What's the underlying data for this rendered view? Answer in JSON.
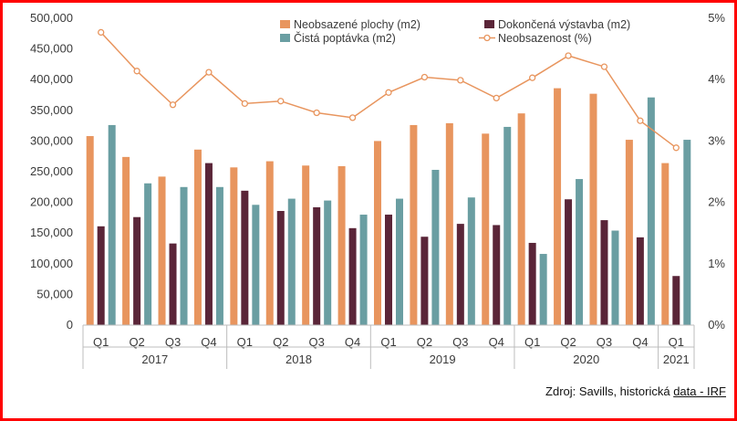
{
  "chart_data": {
    "type": "bar",
    "categories": [
      "Q1",
      "Q2",
      "Q3",
      "Q4",
      "Q1",
      "Q2",
      "Q3",
      "Q4",
      "Q1",
      "Q2",
      "Q3",
      "Q4",
      "Q1",
      "Q2",
      "Q3",
      "Q4",
      "Q1"
    ],
    "groups": [
      {
        "label": "2017",
        "count": 4
      },
      {
        "label": "2018",
        "count": 4
      },
      {
        "label": "2019",
        "count": 4
      },
      {
        "label": "2020",
        "count": 4
      },
      {
        "label": "2021",
        "count": 1
      }
    ],
    "series": [
      {
        "name": "Neobsazené plochy (m2)",
        "color": "#e8955e",
        "type": "bar",
        "axis": "left",
        "values": [
          308000,
          274000,
          242000,
          286000,
          257000,
          267000,
          260000,
          259000,
          300000,
          326000,
          329000,
          312000,
          345000,
          386000,
          377000,
          302000,
          264000
        ]
      },
      {
        "name": "Dokončená výstavba (m2)",
        "color": "#5a2538",
        "type": "bar",
        "axis": "left",
        "values": [
          161000,
          176000,
          133000,
          264000,
          219000,
          186000,
          192000,
          158000,
          180000,
          144000,
          165000,
          163000,
          134000,
          205000,
          171000,
          143000,
          80000
        ]
      },
      {
        "name": "Čistá poptávka (m2)",
        "color": "#6a9ea2",
        "type": "bar",
        "axis": "left",
        "values": [
          326000,
          231000,
          225000,
          225000,
          196000,
          206000,
          203000,
          180000,
          206000,
          253000,
          208000,
          323000,
          116000,
          238000,
          154000,
          371000,
          302000
        ]
      },
      {
        "name": "Neobsazenost (%)",
        "color": "#e8955e",
        "type": "line",
        "axis": "right",
        "values": [
          4.77,
          4.14,
          3.59,
          4.12,
          3.61,
          3.65,
          3.46,
          3.38,
          3.79,
          4.04,
          3.99,
          3.7,
          4.03,
          4.39,
          4.21,
          3.33,
          2.89
        ]
      }
    ],
    "ylim": [
      0,
      500000
    ],
    "y_ticks": [
      "0",
      "50,000",
      "100,000",
      "150,000",
      "200,000",
      "250,000",
      "300,000",
      "350,000",
      "400,000",
      "450,000",
      "500,000"
    ],
    "y2lim": [
      0,
      5
    ],
    "y2_ticks": [
      "0%",
      "1%",
      "2%",
      "3%",
      "4%",
      "5%"
    ],
    "legend_position": "top",
    "grid": false
  },
  "source": {
    "prefix": "Zdroj: Savills, historická ",
    "link": "data - IRF"
  }
}
